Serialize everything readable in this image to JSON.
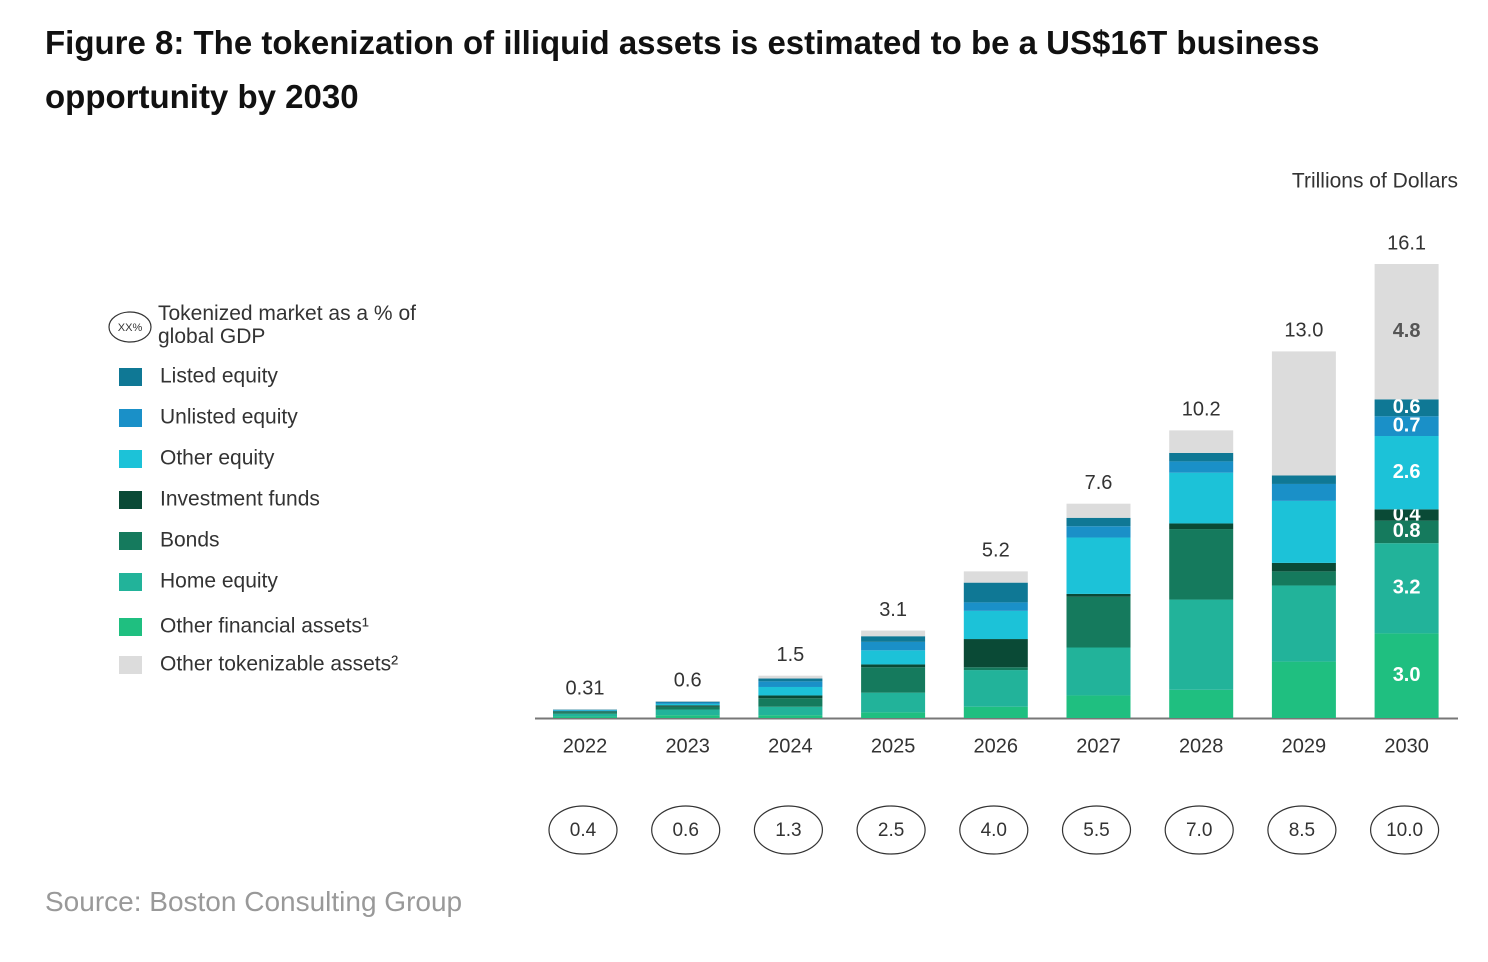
{
  "chart_data": {
    "type": "stacked-bar",
    "title": "Figure 8: The tokenization of illiquid assets is estimated to be a US$16T business opportunity by 2030",
    "unit_label": "Trillions of Dollars",
    "source": "Source: Boston Consulting Group",
    "categories": [
      "2022",
      "2023",
      "2024",
      "2025",
      "2026",
      "2027",
      "2028",
      "2029",
      "2030"
    ],
    "totals": [
      0.31,
      0.6,
      1.5,
      3.1,
      5.2,
      7.6,
      10.2,
      13.0,
      16.1
    ],
    "total_labels": [
      "0.31",
      "0.6",
      "1.5",
      "3.1",
      "5.2",
      "7.6",
      "10.2",
      "13.0",
      "16.1"
    ],
    "gdp_legend_symbol": "XX%",
    "gdp_legend_label": "Tokenized market as a % of global GDP",
    "gdp_share": [
      "0.4",
      "0.6",
      "1.3",
      "2.5",
      "4.0",
      "5.5",
      "7.0",
      "8.5",
      "10.0"
    ],
    "series": [
      {
        "name": "Other financial assets¹",
        "color": "#1fbf80",
        "values": [
          0.05,
          0.1,
          0.1,
          0.2,
          0.4,
          0.8,
          1.0,
          2.0,
          3.0
        ],
        "value_labels": [
          null,
          null,
          null,
          null,
          null,
          null,
          null,
          null,
          "3.0"
        ]
      },
      {
        "name": "Home equity",
        "color": "#22b39a",
        "values": [
          0.1,
          0.2,
          0.3,
          0.7,
          1.3,
          1.7,
          3.2,
          2.7,
          3.2
        ],
        "value_labels": [
          null,
          null,
          null,
          null,
          null,
          null,
          null,
          null,
          "3.2"
        ]
      },
      {
        "name": "Bonds",
        "color": "#157a5d",
        "values": [
          0.06,
          0.1,
          0.3,
          0.9,
          0.1,
          1.8,
          2.5,
          0.5,
          0.8
        ],
        "value_labels": [
          null,
          null,
          null,
          null,
          null,
          null,
          null,
          null,
          "0.8"
        ]
      },
      {
        "name": "Investment funds",
        "color": "#0a4a36",
        "values": [
          0.03,
          0.05,
          0.1,
          0.1,
          1.0,
          0.1,
          0.2,
          0.3,
          0.4
        ],
        "value_labels": [
          null,
          null,
          null,
          null,
          null,
          null,
          null,
          null,
          "0.4"
        ]
      },
      {
        "name": "Other equity",
        "color": "#1cc2d8",
        "values": [
          0.03,
          0.05,
          0.3,
          0.5,
          1.0,
          2.0,
          1.8,
          2.2,
          2.6
        ],
        "value_labels": [
          null,
          null,
          null,
          null,
          null,
          null,
          null,
          null,
          "2.6"
        ]
      },
      {
        "name": "Unlisted equity",
        "color": "#1a90c8",
        "values": [
          0.02,
          0.05,
          0.2,
          0.3,
          0.3,
          0.4,
          0.4,
          0.6,
          0.7
        ],
        "value_labels": [
          null,
          null,
          null,
          null,
          null,
          null,
          null,
          null,
          "0.7"
        ]
      },
      {
        "name": "Listed equity",
        "color": "#0f7895",
        "values": [
          0.01,
          0.03,
          0.1,
          0.2,
          0.7,
          0.3,
          0.3,
          0.3,
          0.6
        ],
        "value_labels": [
          null,
          null,
          null,
          null,
          null,
          null,
          null,
          null,
          "0.6"
        ]
      },
      {
        "name": "Other tokenizable assets²",
        "color": "#dcdcdc",
        "values": [
          0.01,
          0.02,
          0.1,
          0.2,
          0.4,
          0.5,
          0.8,
          4.4,
          4.8
        ],
        "value_labels": [
          null,
          null,
          null,
          null,
          null,
          null,
          null,
          null,
          "4.8"
        ]
      }
    ]
  }
}
